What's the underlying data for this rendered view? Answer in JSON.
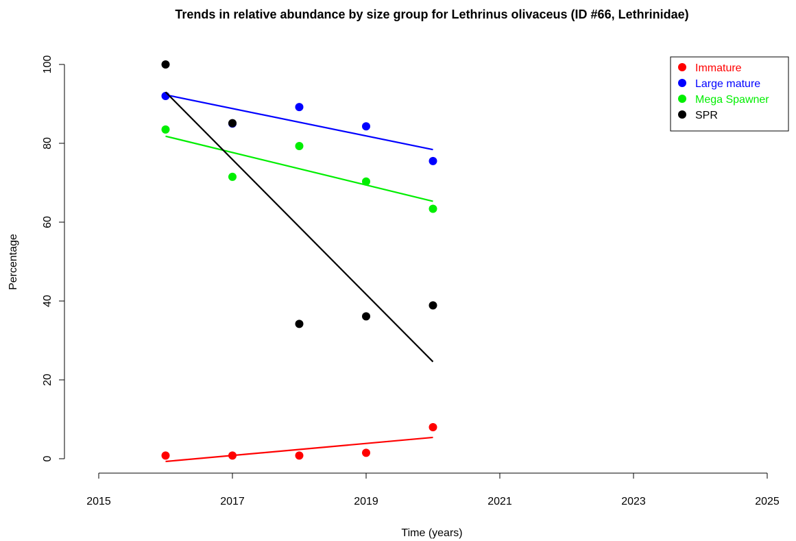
{
  "chart_data": {
    "type": "scatter",
    "title": "Trends in relative abundance by size group for Lethrinus olivaceus (ID #66, Lethrinidae)",
    "xlabel": "Time (years)",
    "ylabel": "Percentage",
    "xlim": [
      2015,
      2025
    ],
    "ylim": [
      0,
      100
    ],
    "x_ticks": [
      2015,
      2017,
      2019,
      2021,
      2023,
      2025
    ],
    "y_ticks": [
      0,
      20,
      40,
      60,
      80,
      100
    ],
    "grid": false,
    "legend_position": "top-right",
    "series": [
      {
        "name": "Immature",
        "color": "#ff0000",
        "points": [
          [
            2016,
            0.8
          ],
          [
            2017,
            0.8
          ],
          [
            2018,
            0.8
          ],
          [
            2019,
            1.5
          ],
          [
            2020,
            8.0
          ]
        ],
        "trend": [
          [
            2016,
            -0.7
          ],
          [
            2020,
            5.4
          ]
        ]
      },
      {
        "name": "Large mature",
        "color": "#0000ff",
        "points": [
          [
            2016,
            92.0
          ],
          [
            2017,
            85.0
          ],
          [
            2018,
            89.2
          ],
          [
            2019,
            84.3
          ],
          [
            2020,
            75.5
          ]
        ],
        "trend": [
          [
            2016,
            92.3
          ],
          [
            2020,
            78.4
          ]
        ]
      },
      {
        "name": "Mega Spawner",
        "color": "#00ee00",
        "points": [
          [
            2016,
            83.5
          ],
          [
            2017,
            71.5
          ],
          [
            2018,
            79.3
          ],
          [
            2019,
            70.3
          ],
          [
            2020,
            63.4
          ]
        ],
        "trend": [
          [
            2016,
            81.8
          ],
          [
            2020,
            65.3
          ]
        ]
      },
      {
        "name": "SPR",
        "color": "#000000",
        "points": [
          [
            2016,
            100.0
          ],
          [
            2017,
            85.1
          ],
          [
            2018,
            34.2
          ],
          [
            2019,
            36.1
          ],
          [
            2020,
            38.9
          ]
        ],
        "trend": [
          [
            2016,
            93.0
          ],
          [
            2020,
            24.6
          ]
        ]
      }
    ]
  }
}
